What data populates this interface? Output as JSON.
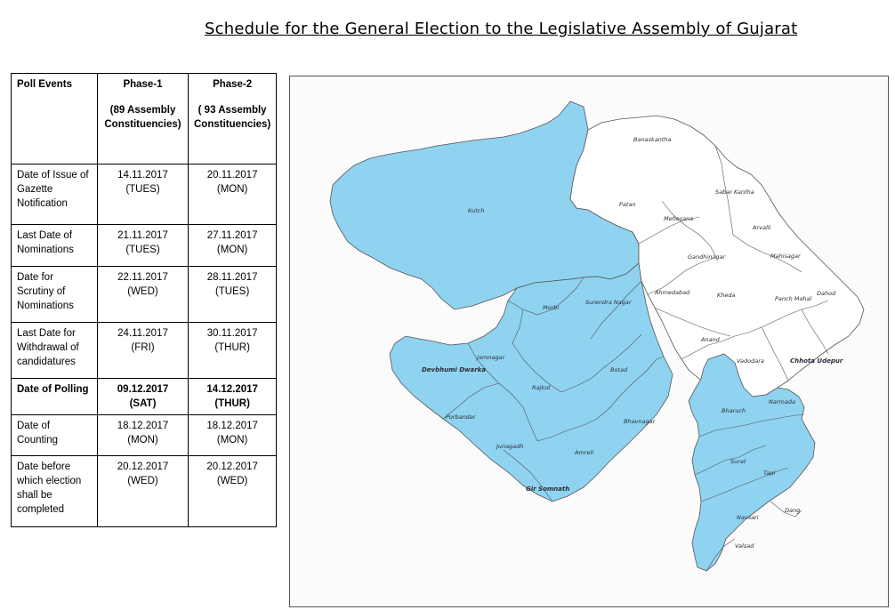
{
  "title": "Schedule for the General Election to the Legislative Assembly of Gujarat",
  "table": {
    "headers": {
      "events": "Poll Events",
      "phase1": "Phase-1",
      "phase1_sub": "(89 Assembly Constituencies)",
      "phase2": "Phase-2",
      "phase2_sub": "( 93 Assembly Constituencies)"
    },
    "rows": [
      {
        "event": "Date of Issue of Gazette Notification",
        "p1_date": "14.11.2017",
        "p1_day": "(TUES)",
        "p2_date": "20.11.2017",
        "p2_day": "(MON)"
      },
      {
        "event": "Last Date of Nominations",
        "p1_date": "21.11.2017",
        "p1_day": "(TUES)",
        "p2_date": "27.11.2017",
        "p2_day": "(MON)"
      },
      {
        "event": "Date for Scrutiny of Nominations",
        "p1_date": "22.11.2017",
        "p1_day": "(WED)",
        "p2_date": "28.11.2017",
        "p2_day": "(TUES)"
      },
      {
        "event": "Last Date for Withdrawal of candidatures",
        "p1_date": "24.11.2017",
        "p1_day": "(FRI)",
        "p2_date": "30.11.2017",
        "p2_day": "(THUR)"
      },
      {
        "event": "Date of Polling",
        "p1_date": "09.12.2017",
        "p1_day": "(SAT)",
        "p2_date": "14.12.2017",
        "p2_day": "(THUR)"
      },
      {
        "event": "Date of Counting",
        "p1_date": "18.12.2017",
        "p1_day": "(MON)",
        "p2_date": "18.12.2017",
        "p2_day": "(MON)"
      },
      {
        "event": "Date before which election shall be completed",
        "p1_date": "20.12.2017",
        "p1_day": "(WED)",
        "p2_date": "20.12.2017",
        "p2_day": "(WED)"
      }
    ]
  },
  "map": {
    "colors": {
      "phase1": "#8fd3f0",
      "phase2": "#ffffff",
      "border": "#555555"
    },
    "districts": {
      "banaskantha": "Banaskantha",
      "sabar_kantha": "Sabar Kantha",
      "patan": "Patan",
      "mehesana": "Mehesana",
      "aravalli": "Arvalli",
      "gandhinagar": "Gandhinagar",
      "mahisagar": "Mahisagar",
      "ahmedabad": "Ahmedabad",
      "kheda": "Kheda",
      "panch_mahal": "Panch Mahal",
      "dahod": "Dahod",
      "anand": "Anand",
      "vadodara": "Vadodara",
      "chhota_udepur": "Chhota Udepur",
      "kutch": "Kutch",
      "morbi": "Morbi",
      "surendra_nagar": "Surendra Nagar",
      "jamnagar": "Jamnagar",
      "devbhumi_dwarka": "Devbhumi Dwarka",
      "rajkot": "Rajkot",
      "botad": "Botad",
      "porbandar": "Porbandar",
      "bhavnagar": "Bhavnagar",
      "junagadh": "Junagadh",
      "amreli": "Amreli",
      "gir_somnath": "Gir Somnath",
      "bharuch": "Bharuch",
      "narmada": "Narmada",
      "surat": "Surat",
      "tapi": "Tapi",
      "navsari": "Navsari",
      "dang": "Dang",
      "valsad": "Valsad"
    }
  }
}
